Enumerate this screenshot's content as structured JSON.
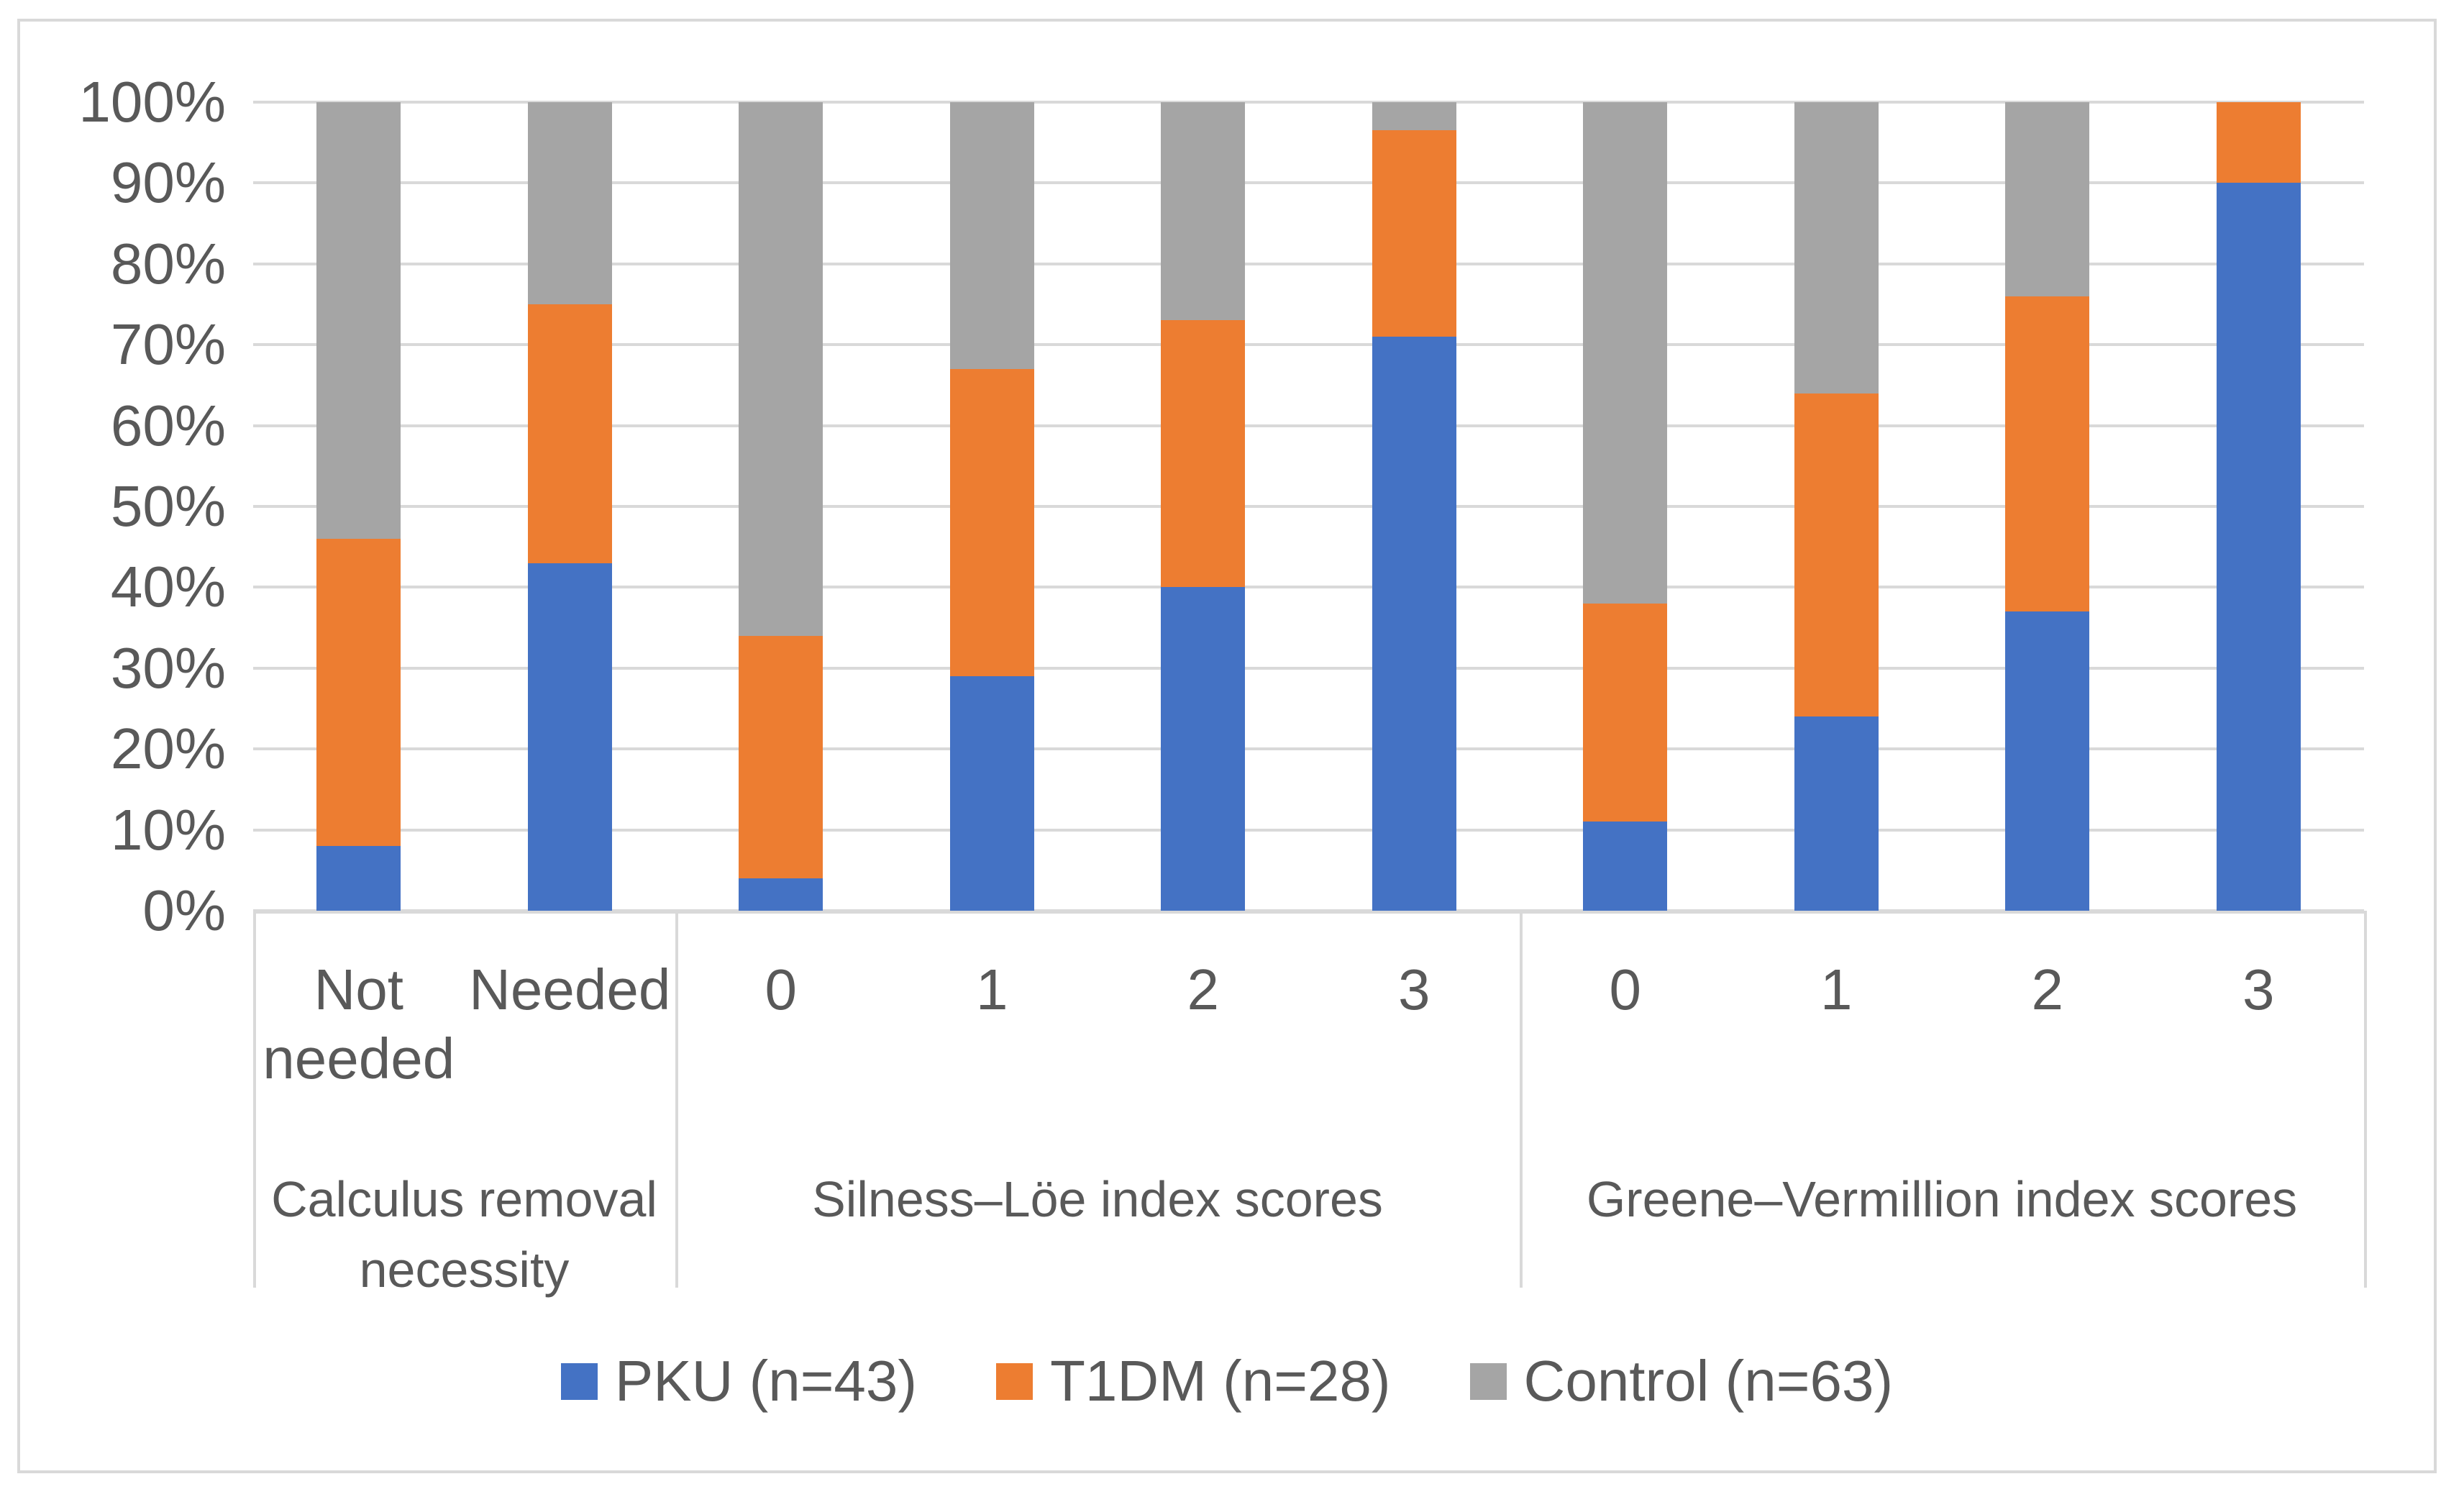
{
  "figure": {
    "background": "#ffffff",
    "border_color": "#d9d9d9"
  },
  "chart_data": {
    "type": "bar",
    "subtype": "100%-stacked-column",
    "title": "",
    "xlabel": "",
    "ylabel": "",
    "y_axis": {
      "min": 0,
      "max": 100,
      "tick_step": 10,
      "ticks": [
        "0%",
        "10%",
        "20%",
        "30%",
        "40%",
        "50%",
        "60%",
        "70%",
        "80%",
        "90%",
        "100%"
      ],
      "grid": true
    },
    "groups": [
      {
        "label": "Calculus removal necessity",
        "categories": [
          "Not needed",
          "Needed"
        ]
      },
      {
        "label": "Silness–Löe index scores",
        "categories": [
          "0",
          "1",
          "2",
          "3"
        ]
      },
      {
        "label": "Greene–Vermillion index scores",
        "categories": [
          "0",
          "1",
          "2",
          "3"
        ]
      }
    ],
    "categories": [
      "Not needed",
      "Needed",
      "0",
      "1",
      "2",
      "3",
      "0",
      "1",
      "2",
      "3"
    ],
    "series": [
      {
        "name": "PKU (n=43)",
        "color": "#4472C4",
        "values": [
          8,
          43,
          4,
          29,
          40,
          71,
          11,
          24,
          37,
          90
        ]
      },
      {
        "name": "T1DM (n=28)",
        "color": "#ED7D31",
        "values": [
          38,
          32,
          30,
          38,
          33,
          25.5,
          27,
          40,
          39,
          10
        ]
      },
      {
        "name": "Control (n=63)",
        "color": "#A5A5A5",
        "values": [
          54,
          25,
          66,
          33,
          27,
          3.5,
          62,
          36,
          24,
          0
        ]
      }
    ],
    "legend_position": "bottom",
    "legend_entries": [
      "PKU (n=43)",
      "T1DM (n=28)",
      "Control (n=63)"
    ],
    "gridline_color": "#d9d9d9",
    "axis_line_color": "#d9d9d9",
    "text_color": "#595959"
  }
}
